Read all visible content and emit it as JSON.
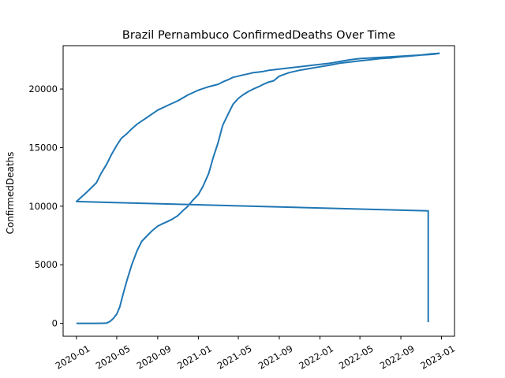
{
  "chart_data": {
    "type": "line",
    "title": "Brazil Pernambuco ConfirmedDeaths Over Time",
    "xlabel": "",
    "ylabel": "ConfirmedDeaths",
    "x_ticks": [
      {
        "date": "2020-01-01",
        "label": "2020-01"
      },
      {
        "date": "2020-05-01",
        "label": "2020-05"
      },
      {
        "date": "2020-09-01",
        "label": "2020-09"
      },
      {
        "date": "2021-01-01",
        "label": "2021-01"
      },
      {
        "date": "2021-05-01",
        "label": "2021-05"
      },
      {
        "date": "2021-09-01",
        "label": "2021-09"
      },
      {
        "date": "2022-01-01",
        "label": "2022-01"
      },
      {
        "date": "2022-05-01",
        "label": "2022-05"
      },
      {
        "date": "2022-09-01",
        "label": "2022-09"
      },
      {
        "date": "2023-01-01",
        "label": "2023-01"
      }
    ],
    "y_ticks": [
      0,
      5000,
      10000,
      15000,
      20000
    ],
    "xlim": [
      "2019-11-22",
      "2023-02-09"
    ],
    "ylim": [
      -1100,
      23700
    ],
    "grid": false,
    "color": "#1f77b4",
    "series": [
      {
        "x": [
          "2020-01-01",
          "2020-02-01",
          "2020-03-01",
          "2020-03-20",
          "2020-04-01",
          "2020-04-10",
          "2020-04-20",
          "2020-05-01",
          "2020-05-10",
          "2020-05-20",
          "2020-06-01",
          "2020-06-15",
          "2020-07-01",
          "2020-07-15",
          "2020-08-01",
          "2020-08-15",
          "2020-09-01",
          "2020-09-15",
          "2020-10-01",
          "2020-10-15",
          "2020-11-01",
          "2020-11-15",
          "2020-12-01",
          "2020-12-15",
          "2021-01-01",
          "2021-01-15",
          "2021-02-01",
          "2021-02-15",
          "2021-03-01",
          "2021-03-15",
          "2021-04-01",
          "2021-04-15",
          "2021-05-01",
          "2021-05-15",
          "2021-06-01",
          "2021-06-15",
          "2021-07-01",
          "2021-07-15",
          "2021-08-01",
          "2021-08-15",
          "2021-09-01",
          "2021-10-01",
          "2021-11-01",
          "2021-12-01",
          "2022-01-01",
          "2022-02-01",
          "2022-03-01",
          "2022-04-01",
          "2022-05-01",
          "2022-06-01",
          "2022-07-01",
          "2022-08-01",
          "2022-09-01",
          "2022-10-01",
          "2022-11-01",
          "2022-12-01",
          "2022-12-25",
          "2022-12-10",
          "2022-11-25",
          "2022-11-01",
          "2022-10-01",
          "2022-09-01",
          "2022-08-01",
          "2022-07-01",
          "2022-06-01",
          "2022-05-01",
          "2022-04-01",
          "2022-03-01",
          "2022-02-01",
          "2022-01-01",
          "2021-12-01",
          "2021-11-01",
          "2021-10-01",
          "2021-09-01",
          "2021-08-01",
          "2021-07-15",
          "2021-07-01",
          "2021-06-15",
          "2021-06-01",
          "2021-05-15",
          "2021-05-01",
          "2021-04-15",
          "2021-04-01",
          "2021-03-15",
          "2021-03-01",
          "2021-02-01",
          "2021-01-01",
          "2020-12-01",
          "2020-11-01",
          "2020-10-01",
          "2020-09-01",
          "2020-08-01",
          "2020-07-01",
          "2020-06-15",
          "2020-06-01",
          "2020-05-15",
          "2020-05-01",
          "2020-04-15",
          "2020-04-01",
          "2020-03-15",
          "2020-03-01",
          "2020-02-01",
          "2020-01-01",
          "2022-11-22",
          "2022-11-22"
        ],
        "y": [
          0,
          0,
          0,
          10,
          30,
          150,
          400,
          800,
          1400,
          2500,
          3700,
          5000,
          6200,
          7000,
          7500,
          7900,
          8300,
          8500,
          8700,
          8900,
          9200,
          9600,
          10000,
          10500,
          11000,
          11700,
          12800,
          14200,
          15400,
          16900,
          17900,
          18700,
          19200,
          19500,
          19800,
          20000,
          20200,
          20400,
          20600,
          20700,
          21100,
          21400,
          21600,
          21750,
          21900,
          22050,
          22200,
          22300,
          22400,
          22500,
          22600,
          22650,
          22750,
          22820,
          22900,
          23000,
          23050,
          22980,
          22950,
          22900,
          22850,
          22800,
          22750,
          22700,
          22650,
          22600,
          22500,
          22350,
          22200,
          22100,
          22000,
          21900,
          21800,
          21700,
          21600,
          21500,
          21450,
          21400,
          21300,
          21200,
          21100,
          21000,
          20800,
          20600,
          20400,
          20200,
          19900,
          19500,
          19000,
          18600,
          18200,
          17600,
          17000,
          16600,
          16200,
          15800,
          15200,
          14400,
          13600,
          12800,
          12000,
          11200,
          10400,
          9600,
          100
        ]
      }
    ]
  }
}
